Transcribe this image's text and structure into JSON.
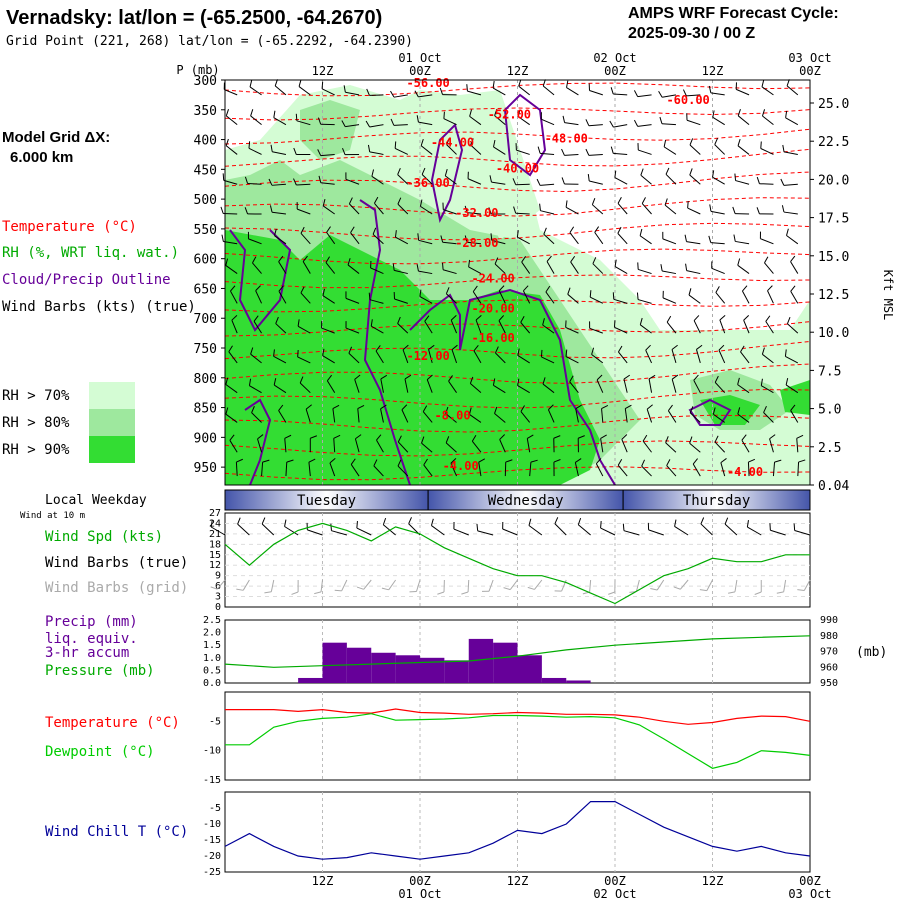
{
  "header": {
    "title": "Vernadsky:  lat/lon = (-65.2500, -64.2670)",
    "grid_point": "Grid Point (221, 268) lat/lon = (-65.2292, -64.2390)",
    "cycle_line1": "AMPS WRF Forecast Cycle:",
    "cycle_line2": "2025-09-30 / 00  Z"
  },
  "model_grid": {
    "label": "Model Grid ΔX:",
    "value": "6.000 km"
  },
  "legend": {
    "temperature": "Temperature (°C)",
    "rh": "RH (%, WRT liq. wat.)",
    "cloud": "Cloud/Precip Outline",
    "wind": "Wind Barbs (kts) (true)",
    "rh_levels": [
      {
        "label": "RH > 70%",
        "color": "#d4fcd4"
      },
      {
        "label": "RH > 80%",
        "color": "#9ee89e"
      },
      {
        "label": "RH > 90%",
        "color": "#33dd33"
      }
    ]
  },
  "colors": {
    "temperature": "#ff0000",
    "rh": "#00bb00",
    "cloud": "#660099",
    "wind_chill": "#000099",
    "precip": "#660099",
    "pressure": "#00aa00",
    "wind_speed": "#00aa00",
    "dewpoint": "#00cc00"
  },
  "time_axis": {
    "top_labels": [
      {
        "t": 12,
        "hour": "12Z",
        "date": ""
      },
      {
        "t": 24,
        "hour": "00Z",
        "date": "01 Oct"
      },
      {
        "t": 36,
        "hour": "12Z",
        "date": ""
      },
      {
        "t": 48,
        "hour": "00Z",
        "date": "02 Oct"
      },
      {
        "t": 60,
        "hour": "12Z",
        "date": ""
      },
      {
        "t": 72,
        "hour": "00Z",
        "date": "03 Oct"
      }
    ],
    "bottom_labels": [
      {
        "t": 12,
        "hour": "12Z",
        "date": ""
      },
      {
        "t": 24,
        "hour": "00Z",
        "date": "01 Oct"
      },
      {
        "t": 36,
        "hour": "12Z",
        "date": ""
      },
      {
        "t": 48,
        "hour": "00Z",
        "date": "02 Oct"
      },
      {
        "t": 60,
        "hour": "12Z",
        "date": ""
      },
      {
        "t": 72,
        "hour": "00Z",
        "date": "03 Oct"
      }
    ]
  },
  "weekday": {
    "label": "Local Weekday",
    "sublabel": "Wind at 10 m",
    "days": [
      {
        "name": "Tuesday",
        "start": 0,
        "end": 25
      },
      {
        "name": "Wednesday",
        "start": 25,
        "end": 49
      },
      {
        "name": "Thursday",
        "start": 49,
        "end": 72
      }
    ]
  },
  "chart_data": [
    {
      "type": "heatmap",
      "name": "Cross section",
      "ylabel": "P (mb)",
      "y2label": "Kft MSL",
      "y_ticks": [
        300,
        350,
        400,
        450,
        500,
        550,
        600,
        650,
        700,
        750,
        800,
        850,
        900,
        950
      ],
      "y2_ticks": [
        "25.0",
        "22.5",
        "20.0",
        "17.5",
        "15.0",
        "12.5",
        "10.0",
        "7.5",
        "5.0",
        "2.5",
        "0.04"
      ],
      "ylim": [
        300,
        980
      ],
      "xlim": [
        0,
        72
      ],
      "temperature_labels": [
        {
          "t": 25,
          "p": 312,
          "text": "-56.00"
        },
        {
          "t": 35,
          "p": 365,
          "text": "-52.00"
        },
        {
          "t": 57,
          "p": 340,
          "text": "-60.00"
        },
        {
          "t": 28,
          "p": 412,
          "text": "-44.00"
        },
        {
          "t": 42,
          "p": 405,
          "text": "-48.00"
        },
        {
          "t": 36,
          "p": 455,
          "text": "-40.00"
        },
        {
          "t": 25,
          "p": 480,
          "text": "-36.00"
        },
        {
          "t": 31,
          "p": 530,
          "text": "-32.00"
        },
        {
          "t": 31,
          "p": 580,
          "text": "-28.00"
        },
        {
          "t": 33,
          "p": 640,
          "text": "-24.00"
        },
        {
          "t": 33,
          "p": 690,
          "text": "-20.00"
        },
        {
          "t": 33,
          "p": 740,
          "text": "-16.00"
        },
        {
          "t": 25,
          "p": 770,
          "text": "-12.00"
        },
        {
          "t": 28,
          "p": 870,
          "text": "-8.00"
        },
        {
          "t": 29,
          "p": 955,
          "text": "-4.00"
        },
        {
          "t": 64,
          "p": 965,
          "text": "-4.00"
        }
      ],
      "wind_rows_mb": [
        325,
        375,
        425,
        475,
        525,
        575,
        625,
        675,
        725,
        775,
        825,
        875,
        925,
        965
      ],
      "wind_dir_by_row_deg": [
        285,
        285,
        290,
        290,
        295,
        300,
        305,
        310,
        315,
        320,
        325,
        330,
        335,
        340
      ]
    },
    {
      "type": "line",
      "name": "Wind Spd (kts)",
      "labels": [
        "Wind Spd (kts)",
        "Wind Barbs (true)",
        "Wind Barbs (grid)"
      ],
      "y_ticks": [
        0,
        3,
        6,
        9,
        12,
        15,
        18,
        21,
        24,
        27
      ],
      "ylim": [
        0,
        27
      ],
      "x": [
        0,
        3,
        6,
        9,
        12,
        15,
        18,
        21,
        24,
        27,
        30,
        33,
        36,
        39,
        42,
        45,
        48,
        51,
        54,
        57,
        60,
        63,
        66,
        69,
        72
      ],
      "values": [
        18,
        12,
        18,
        22,
        24,
        22,
        19,
        23,
        21,
        17,
        14,
        11,
        9,
        9,
        7,
        4,
        1,
        5,
        9,
        11,
        14,
        13,
        13,
        15,
        15
      ]
    },
    {
      "type": "bar",
      "name": "Precip (mm) liq. equiv. 3-hr accum",
      "labels": [
        "Precip (mm)",
        "liq. equiv.",
        "3-hr accum",
        "Pressure (mb)"
      ],
      "y_ticks": [
        "2.5",
        "2.0",
        "1.5",
        "1.0",
        "0.5",
        "0.0"
      ],
      "ylim": [
        0,
        2.5
      ],
      "y2_ticks": [
        990,
        980,
        970,
        960,
        950
      ],
      "y2lim": [
        950,
        990
      ],
      "y2label": "(mb)",
      "bar_x": [
        9,
        12,
        15,
        18,
        21,
        24,
        27,
        30,
        33,
        36,
        39,
        42
      ],
      "bar_values": [
        0.2,
        1.6,
        1.4,
        1.2,
        1.1,
        1.0,
        0.9,
        1.75,
        1.6,
        1.1,
        0.2,
        0.1
      ],
      "pressure_x": [
        0,
        6,
        12,
        18,
        24,
        30,
        36,
        42,
        48,
        54,
        60,
        66,
        72
      ],
      "pressure_values": [
        962,
        960,
        961,
        962,
        963,
        964,
        967,
        971,
        974,
        976,
        978,
        979,
        980
      ]
    },
    {
      "type": "line",
      "name": "Temperature / Dewpoint",
      "labels": [
        "Temperature (°C)",
        "Dewpoint (°C)"
      ],
      "y_ticks": [
        -5,
        -10,
        -15
      ],
      "ylim": [
        -15,
        0
      ],
      "x": [
        0,
        3,
        6,
        9,
        12,
        15,
        18,
        21,
        24,
        27,
        30,
        33,
        36,
        39,
        42,
        45,
        48,
        51,
        54,
        57,
        60,
        63,
        66,
        69,
        72
      ],
      "temperature": [
        -3,
        -3,
        -3,
        -3.3,
        -3,
        -3.5,
        -3.6,
        -2.9,
        -3.5,
        -3.6,
        -3.8,
        -3.7,
        -3.5,
        -3.6,
        -3.8,
        -3.8,
        -3.9,
        -4.3,
        -5,
        -5.5,
        -5.2,
        -4.5,
        -4.1,
        -4.2,
        -5
      ],
      "dewpoint": [
        -9,
        -9,
        -6,
        -5,
        -4.5,
        -4.3,
        -3.7,
        -4.8,
        -4.7,
        -4.6,
        -4.4,
        -4,
        -4,
        -4.1,
        -4.3,
        -4.2,
        -4.4,
        -5.6,
        -8,
        -10.5,
        -13,
        -12,
        -10,
        -10.3,
        -10.8
      ]
    },
    {
      "type": "line",
      "name": "Wind Chill T",
      "labels": [
        "Wind Chill T (°C)"
      ],
      "y_ticks": [
        -5,
        -10,
        -15,
        -20,
        -25
      ],
      "ylim": [
        -25,
        0
      ],
      "x": [
        0,
        3,
        6,
        9,
        12,
        15,
        18,
        21,
        24,
        27,
        30,
        33,
        36,
        39,
        42,
        45,
        48,
        51,
        54,
        57,
        60,
        63,
        66,
        69,
        72
      ],
      "values": [
        -17,
        -13,
        -17,
        -20,
        -21,
        -20.5,
        -19,
        -20,
        -21,
        -20,
        -19,
        -16,
        -12,
        -13,
        -10,
        -3,
        -3,
        -7,
        -11,
        -14,
        -17,
        -18.5,
        -17,
        -19,
        -20
      ]
    }
  ]
}
